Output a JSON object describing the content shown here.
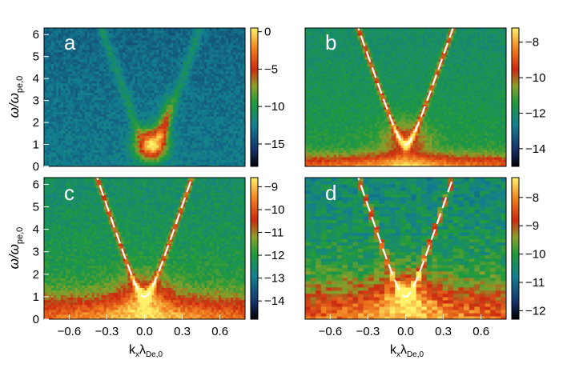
{
  "axis_labels": {
    "y_top": "ω/ω",
    "y_top_sub": "pe,0",
    "y_bottom": "ω/ω",
    "y_bottom_sub": "pe,0",
    "x_left": "k",
    "x_left_sub1": "x",
    "x_left_mid": "λ",
    "x_left_sub2": "De,0",
    "x_right": "k",
    "x_right_sub1": "x",
    "x_right_mid": "λ",
    "x_right_sub2": "De,0"
  },
  "chart_data": [
    {
      "type": "heatmap",
      "panel_label": "a",
      "xlim": [
        -0.8,
        0.8
      ],
      "ylim": [
        0,
        6.3
      ],
      "x_ticks": [],
      "y_ticks": [
        "0",
        "1",
        "2",
        "3",
        "4",
        "5",
        "6"
      ],
      "colorbar": {
        "range": [
          -18,
          0.5
        ],
        "ticks": [
          "0",
          "−5",
          "−10",
          "−15"
        ],
        "tick_values": [
          0,
          -5,
          -10,
          -15
        ]
      },
      "dispersion_curve": false,
      "features": {
        "bright_spot": {
          "kx": 0.05,
          "omega": 1.0
        },
        "beam_mode_slope": 8,
        "background": -13
      }
    },
    {
      "type": "heatmap",
      "panel_label": "b",
      "xlim": [
        -0.8,
        0.8
      ],
      "ylim": [
        0,
        6.3
      ],
      "x_ticks": [],
      "y_ticks": [],
      "colorbar": {
        "range": [
          -15,
          -7.2
        ],
        "ticks": [
          "−8",
          "−10",
          "−12",
          "−14"
        ],
        "tick_values": [
          -8,
          -10,
          -12,
          -14
        ]
      },
      "dispersion_curve": true,
      "features": {
        "band_max": -7.9,
        "background": -12
      }
    },
    {
      "type": "heatmap",
      "panel_label": "c",
      "xlim": [
        -0.8,
        0.8
      ],
      "ylim": [
        0,
        6.3
      ],
      "x_ticks": [
        "−0.6",
        "−0.3",
        "0.0",
        "0.3",
        "0.6"
      ],
      "x_tick_values": [
        -0.6,
        -0.3,
        0.0,
        0.3,
        0.6
      ],
      "y_ticks": [
        "0",
        "1",
        "2",
        "3",
        "4",
        "5",
        "6"
      ],
      "colorbar": {
        "range": [
          -14.8,
          -8.6
        ],
        "ticks": [
          "−9",
          "−10",
          "−11",
          "−12",
          "−13",
          "−14"
        ],
        "tick_values": [
          -9,
          -10,
          -11,
          -12,
          -13,
          -14
        ]
      },
      "dispersion_curve": true,
      "features": {
        "band_max": -9.2,
        "background": -12.4
      }
    },
    {
      "type": "heatmap",
      "panel_label": "d",
      "xlim": [
        -0.8,
        0.8
      ],
      "ylim": [
        0,
        6.3
      ],
      "x_ticks": [
        "−0.6",
        "−0.3",
        "0.0",
        "0.3",
        "0.6"
      ],
      "x_tick_values": [
        -0.6,
        -0.3,
        0.0,
        0.3,
        0.6
      ],
      "y_ticks": [],
      "colorbar": {
        "range": [
          -12.3,
          -7.3
        ],
        "ticks": [
          "−8",
          "−9",
          "−10",
          "−11",
          "−12"
        ],
        "tick_values": [
          -8,
          -9,
          -10,
          -11,
          -12
        ]
      },
      "dispersion_curve": true,
      "features": {
        "band_max": -8.0,
        "background": -10.5
      }
    }
  ]
}
